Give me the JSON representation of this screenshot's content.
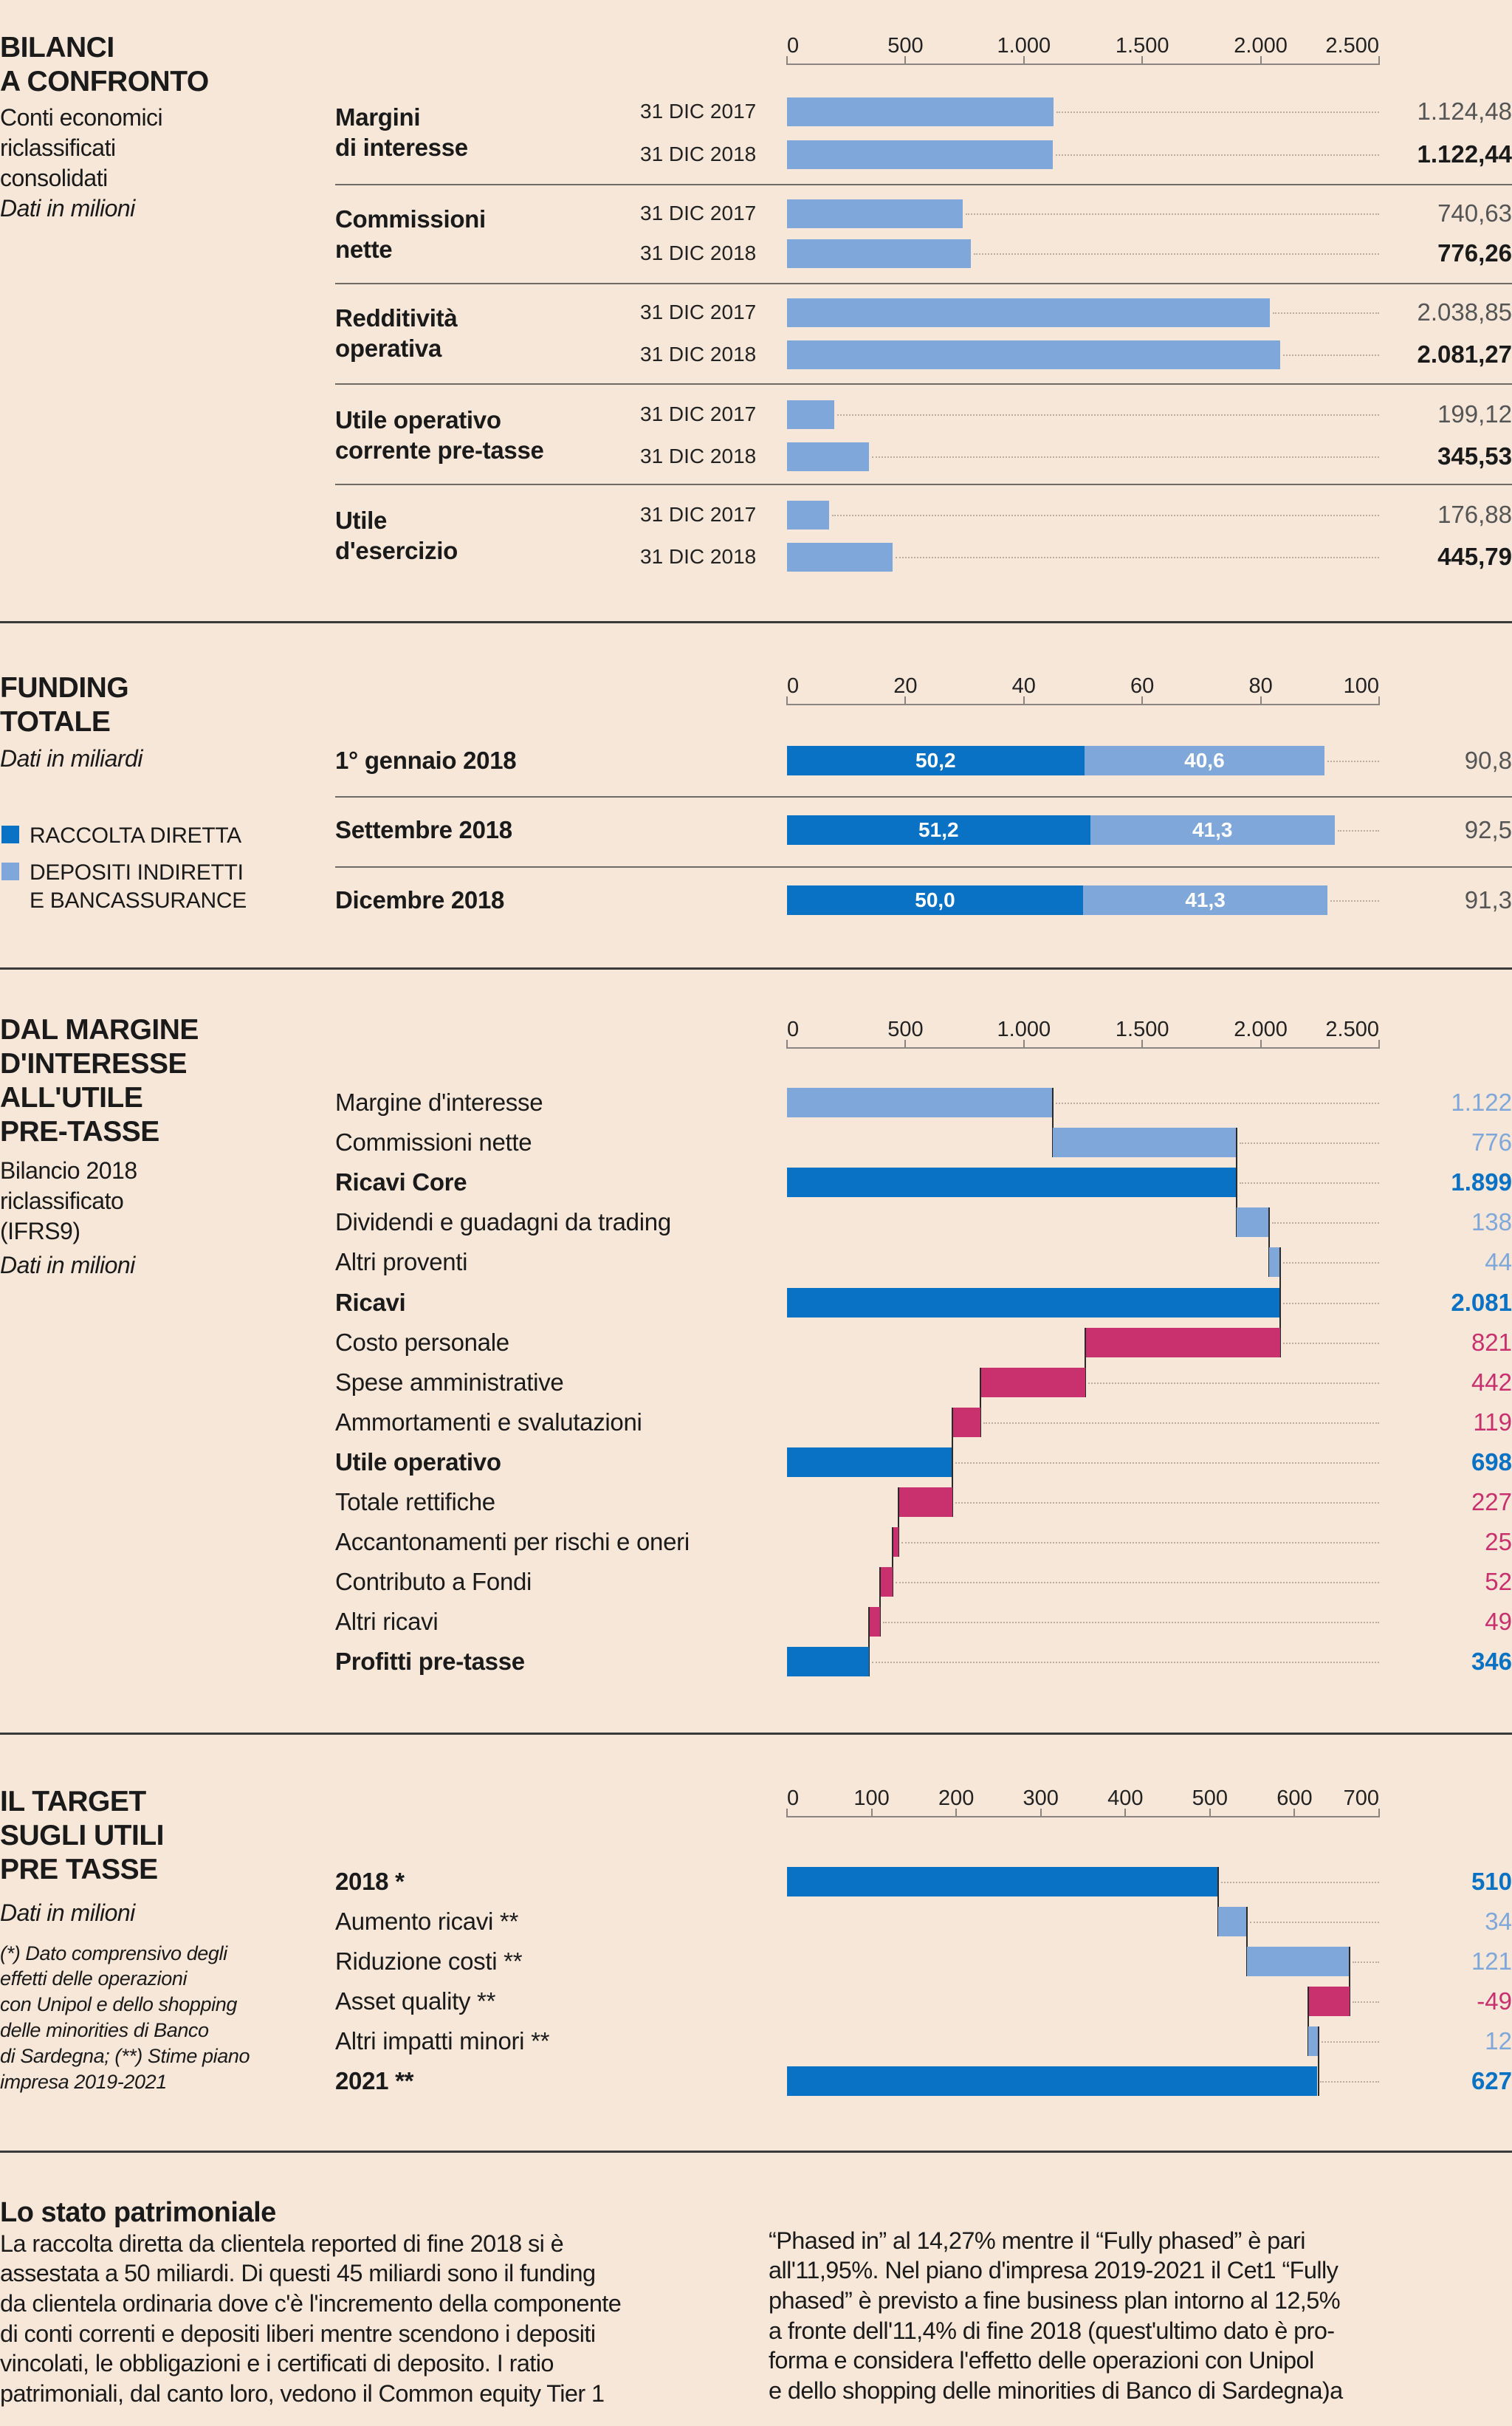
{
  "colors": {
    "background": "#f6e7d8",
    "light_blue": "#7fa7d9",
    "dark_blue": "#0a72c4",
    "magenta": "#c8306e",
    "text": "#1a1a1a"
  },
  "chart_data": [
    {
      "type": "bar",
      "title": [
        "BILANCI",
        "A CONFRONTO"
      ],
      "subtitle": [
        "Conti economici",
        "riclassificati",
        "consolidati"
      ],
      "unit_note": "Dati in milioni",
      "xlim": [
        0,
        2500
      ],
      "ticks": [
        "0",
        "500",
        "1.000",
        "1.500",
        "2.000",
        "2.500"
      ],
      "tick_values": [
        0,
        500,
        1000,
        1500,
        2000,
        2500
      ],
      "groups": [
        {
          "label": [
            "Margini",
            "di interesse"
          ],
          "rows": [
            {
              "period": "31 DIC 2017",
              "value": 1124.48,
              "label": "1.124,48"
            },
            {
              "period": "31 DIC 2018",
              "value": 1122.44,
              "label": "1.122,44"
            }
          ]
        },
        {
          "label": [
            "Commissioni",
            "nette"
          ],
          "rows": [
            {
              "period": "31 DIC 2017",
              "value": 740.63,
              "label": "740,63"
            },
            {
              "period": "31 DIC 2018",
              "value": 776.26,
              "label": "776,26"
            }
          ]
        },
        {
          "label": [
            "Redditività",
            "operativa"
          ],
          "rows": [
            {
              "period": "31 DIC 2017",
              "value": 2038.85,
              "label": "2.038,85"
            },
            {
              "period": "31 DIC 2018",
              "value": 2081.27,
              "label": "2.081,27"
            }
          ]
        },
        {
          "label": [
            "Utile operativo",
            "corrente pre-tasse"
          ],
          "rows": [
            {
              "period": "31 DIC 2017",
              "value": 199.12,
              "label": "199,12"
            },
            {
              "period": "31 DIC 2018",
              "value": 345.53,
              "label": "345,53"
            }
          ]
        },
        {
          "label": [
            "Utile",
            "d'esercizio"
          ],
          "rows": [
            {
              "period": "31 DIC 2017",
              "value": 176.88,
              "label": "176,88"
            },
            {
              "period": "31 DIC 2018",
              "value": 445.79,
              "label": "445,79"
            }
          ]
        }
      ]
    },
    {
      "type": "bar",
      "stacked": true,
      "title": [
        "FUNDING",
        "TOTALE"
      ],
      "unit_note": "Dati in miliardi",
      "xlim": [
        0,
        100
      ],
      "ticks": [
        "0",
        "20",
        "40",
        "60",
        "80",
        "100"
      ],
      "tick_values": [
        0,
        20,
        40,
        60,
        80,
        100
      ],
      "legend": [
        {
          "lines": [
            "RACCOLTA DIRETTA"
          ],
          "color": "#0a72c4"
        },
        {
          "lines": [
            "DEPOSITI INDIRETTI",
            "E BANCASSURANCE"
          ],
          "color": "#7fa7d9"
        }
      ],
      "categories": [
        "1° gennaio 2018",
        "Settembre 2018",
        "Dicembre 2018"
      ],
      "series": [
        {
          "name": "RACCOLTA DIRETTA",
          "values": [
            50.2,
            51.2,
            50.0
          ],
          "labels": [
            "50,2",
            "51,2",
            "50,0"
          ]
        },
        {
          "name": "DEPOSITI INDIRETTI E BANCASSURANCE",
          "values": [
            40.6,
            41.3,
            41.3
          ],
          "labels": [
            "40,6",
            "41,3",
            "41,3"
          ]
        }
      ],
      "totals": [
        "90,8",
        "92,5",
        "91,3"
      ]
    },
    {
      "type": "waterfall",
      "title": [
        "DAL MARGINE",
        "D'INTERESSE",
        "ALL'UTILE",
        "PRE-TASSE"
      ],
      "subtitle": [
        "Bilancio 2018",
        "riclassificato",
        "(IFRS9)"
      ],
      "unit_note": "Dati in milioni",
      "xlim": [
        0,
        2500
      ],
      "ticks": [
        "0",
        "500",
        "1.000",
        "1.500",
        "2.000",
        "2.500"
      ],
      "tick_values": [
        0,
        500,
        1000,
        1500,
        2000,
        2500
      ],
      "items": [
        {
          "label": "Margine d'interesse",
          "kind": "up",
          "start": 0,
          "end": 1122,
          "value": "1.122"
        },
        {
          "label": "Commissioni nette",
          "kind": "up",
          "start": 1122,
          "end": 1898,
          "value": "776"
        },
        {
          "label": "Ricavi Core",
          "kind": "total",
          "start": 0,
          "end": 1899,
          "value": "1.899"
        },
        {
          "label": "Dividendi e guadagni da trading",
          "kind": "up",
          "start": 1899,
          "end": 2037,
          "value": "138"
        },
        {
          "label": "Altri proventi",
          "kind": "up",
          "start": 2037,
          "end": 2081,
          "value": "44"
        },
        {
          "label": "Ricavi",
          "kind": "total",
          "start": 0,
          "end": 2081,
          "value": "2.081"
        },
        {
          "label": "Costo personale",
          "kind": "down",
          "start": 2081,
          "end": 1260,
          "value": "821"
        },
        {
          "label": "Spese amministrative",
          "kind": "down",
          "start": 1260,
          "end": 818,
          "value": "442"
        },
        {
          "label": "Ammortamenti e svalutazioni",
          "kind": "down",
          "start": 818,
          "end": 699,
          "value": "119"
        },
        {
          "label": "Utile operativo",
          "kind": "total",
          "start": 0,
          "end": 698,
          "value": "698"
        },
        {
          "label": "Totale rettifiche",
          "kind": "down",
          "start": 698,
          "end": 471,
          "value": "227"
        },
        {
          "label": "Accantonamenti per rischi e oneri",
          "kind": "down",
          "start": 471,
          "end": 446,
          "value": "25"
        },
        {
          "label": "Contributo a Fondi",
          "kind": "down",
          "start": 446,
          "end": 394,
          "value": "52"
        },
        {
          "label": "Altri ricavi",
          "kind": "down",
          "start": 394,
          "end": 345,
          "value": "49"
        },
        {
          "label": "Profitti pre-tasse",
          "kind": "total",
          "start": 0,
          "end": 346,
          "value": "346"
        }
      ]
    },
    {
      "type": "waterfall",
      "title": [
        "IL TARGET",
        "SUGLI UTILI",
        "PRE TASSE"
      ],
      "unit_note": "Dati in milioni",
      "notes": [
        "(*) Dato comprensivo degli",
        "effetti delle operazioni",
        "con Unipol e dello shopping",
        "delle minorities di Banco",
        "di Sardegna; (**) Stime piano",
        "impresa 2019-2021"
      ],
      "xlim": [
        0,
        700
      ],
      "ticks": [
        "0",
        "100",
        "200",
        "300",
        "400",
        "500",
        "600",
        "700"
      ],
      "tick_values": [
        0,
        100,
        200,
        300,
        400,
        500,
        600,
        700
      ],
      "items": [
        {
          "label": "2018 *",
          "kind": "total",
          "start": 0,
          "end": 510,
          "value": "510"
        },
        {
          "label": "Aumento ricavi **",
          "kind": "up",
          "start": 510,
          "end": 544,
          "value": "34"
        },
        {
          "label": "Riduzione costi **",
          "kind": "up",
          "start": 544,
          "end": 665,
          "value": "121"
        },
        {
          "label": "Asset quality **",
          "kind": "down",
          "start": 665,
          "end": 616,
          "value": "-49"
        },
        {
          "label": "Altri impatti minori **",
          "kind": "up",
          "start": 616,
          "end": 628,
          "value": "12"
        },
        {
          "label": "2021 **",
          "kind": "total",
          "start": 0,
          "end": 627,
          "value": "627"
        }
      ]
    }
  ],
  "article": {
    "title": "Lo stato patrimoniale",
    "col1": [
      "La raccolta diretta da clientela reported di fine 2018 si è",
      "assestata a 50 miliardi. Di questi 45 miliardi sono il funding",
      "da clientela ordinaria dove c'è l'incremento della componente",
      "di conti correnti e depositi liberi mentre scendono i depositi",
      "vincolati, le obbligazioni e i certificati di deposito. I ratio",
      "patrimoniali, dal canto loro, vedono il Common equity Tier 1"
    ],
    "col2": [
      "“Phased in” al 14,27% mentre il “Fully phased” è pari",
      "all'11,95%. Nel piano d'impresa 2019-2021 il Cet1 “Fully",
      "phased” è previsto a fine business plan intorno al 12,5%",
      "a fronte dell'11,4% di fine 2018 (quest'ultimo dato è pro-",
      "forma e considera l'effetto delle operazioni con  Unipol",
      "e dello shopping delle minorities di Banco di Sardegna)a"
    ]
  }
}
